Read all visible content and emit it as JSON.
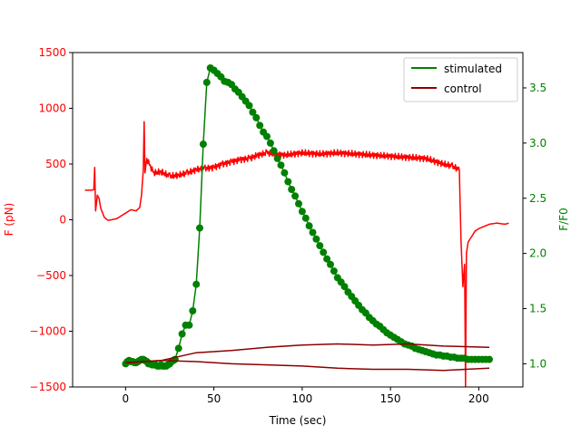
{
  "chart_data": {
    "type": "line",
    "xlabel": "Time (sec)",
    "ylabel_left": "F (pN)",
    "ylabel_right": "F/F0",
    "xlim": [
      -30,
      225
    ],
    "ylim_left": [
      -1500,
      1500
    ],
    "ylim_right": [
      0.79,
      3.82
    ],
    "xticks": [
      0,
      50,
      100,
      150,
      200
    ],
    "xtick_labels": [
      "0",
      "50",
      "100",
      "150",
      "200"
    ],
    "yticks_left": [
      -1500,
      -1000,
      -500,
      0,
      500,
      1000,
      1500
    ],
    "ytick_labels_left": [
      "−1500",
      "−1000",
      "−500",
      "0",
      "500",
      "1000",
      "1500"
    ],
    "yticks_right": [
      1.0,
      1.5,
      2.0,
      2.5,
      3.0,
      3.5
    ],
    "ytick_labels_right": [
      "1.0",
      "1.5",
      "2.0",
      "2.5",
      "3.0",
      "3.5"
    ],
    "legend": {
      "placement": "top-right",
      "entries": [
        {
          "label": "stimulated",
          "color": "#008000"
        },
        {
          "label": "control",
          "color": "#8b0000"
        }
      ]
    },
    "colors": {
      "force": "#ff0000",
      "stimulated": "#008000",
      "control": "#8b0000",
      "left_axis": "#ff0000",
      "right_axis": "#008000"
    },
    "series": [
      {
        "axis": "left",
        "color": "#ff0000",
        "noise": 30,
        "x": [
          -23,
          -19,
          -18,
          -17.5,
          -17,
          -16,
          -15,
          -14,
          -12,
          -10,
          -8,
          -5,
          0,
          3,
          6,
          8,
          9,
          10,
          10.5,
          11,
          12,
          14,
          16,
          20,
          25,
          30,
          35,
          40,
          45,
          50,
          55,
          60,
          65,
          70,
          75,
          80,
          90,
          100,
          110,
          120,
          130,
          140,
          150,
          160,
          170,
          180,
          185,
          189,
          190,
          191,
          192,
          192.5,
          193,
          194,
          196,
          198,
          200,
          203,
          206,
          210,
          215,
          217
        ],
        "y": [
          265,
          265,
          270,
          470,
          80,
          220,
          190,
          100,
          20,
          -5,
          0,
          10,
          60,
          90,
          80,
          110,
          220,
          440,
          880,
          420,
          550,
          480,
          420,
          430,
          390,
          400,
          420,
          450,
          460,
          470,
          500,
          520,
          540,
          550,
          580,
          600,
          580,
          600,
          590,
          600,
          590,
          580,
          570,
          560,
          550,
          500,
          480,
          450,
          -200,
          -600,
          -400,
          -1500,
          -300,
          -200,
          -150,
          -100,
          -80,
          -60,
          -40,
          -30,
          -40,
          -30
        ]
      },
      {
        "name": "stimulated",
        "axis": "right",
        "color": "#008000",
        "markers": true,
        "x": [
          0,
          1,
          2,
          3,
          4,
          5,
          6,
          7,
          8,
          9,
          10,
          11,
          12,
          13,
          14,
          15,
          16,
          17,
          18,
          19,
          20,
          21,
          22,
          23,
          24,
          25,
          26,
          27,
          28,
          30,
          32,
          34,
          36,
          38,
          40,
          42,
          44,
          46,
          48,
          50,
          52,
          54,
          56,
          58,
          60,
          62,
          64,
          66,
          68,
          70,
          72,
          74,
          76,
          78,
          80,
          82,
          84,
          86,
          88,
          90,
          92,
          94,
          96,
          98,
          100,
          102,
          104,
          106,
          108,
          110,
          112,
          114,
          116,
          118,
          120,
          122,
          124,
          126,
          128,
          130,
          132,
          134,
          136,
          138,
          140,
          142,
          144,
          146,
          148,
          150,
          152,
          154,
          156,
          158,
          160,
          162,
          164,
          166,
          168,
          170,
          172,
          174,
          176,
          178,
          180,
          182,
          184,
          186,
          188,
          190,
          192,
          194,
          196,
          198,
          200,
          202,
          204,
          206
        ],
        "y": [
          1.0,
          1.02,
          1.03,
          1.02,
          1.02,
          1.01,
          1.01,
          1.02,
          1.03,
          1.04,
          1.04,
          1.03,
          1.02,
          1.0,
          1.0,
          0.99,
          0.99,
          0.99,
          0.98,
          0.98,
          0.99,
          0.98,
          0.98,
          0.98,
          0.99,
          1.0,
          1.02,
          1.03,
          1.04,
          1.14,
          1.27,
          1.35,
          1.35,
          1.48,
          1.72,
          2.23,
          2.99,
          3.55,
          3.68,
          3.66,
          3.63,
          3.6,
          3.56,
          3.55,
          3.53,
          3.49,
          3.46,
          3.42,
          3.38,
          3.34,
          3.28,
          3.23,
          3.16,
          3.1,
          3.06,
          3.0,
          2.93,
          2.86,
          2.8,
          2.73,
          2.65,
          2.58,
          2.52,
          2.45,
          2.38,
          2.32,
          2.25,
          2.19,
          2.13,
          2.07,
          2.01,
          1.95,
          1.9,
          1.84,
          1.78,
          1.74,
          1.7,
          1.65,
          1.61,
          1.57,
          1.53,
          1.49,
          1.46,
          1.42,
          1.39,
          1.36,
          1.34,
          1.31,
          1.28,
          1.26,
          1.24,
          1.22,
          1.2,
          1.18,
          1.17,
          1.16,
          1.14,
          1.13,
          1.12,
          1.11,
          1.1,
          1.09,
          1.08,
          1.08,
          1.07,
          1.07,
          1.06,
          1.06,
          1.05,
          1.05,
          1.05,
          1.04,
          1.04,
          1.04,
          1.04,
          1.04,
          1.04,
          1.04
        ]
      },
      {
        "name": "control",
        "axis": "right",
        "color": "#8b0000",
        "x": [
          0,
          20,
          40,
          60,
          80,
          100,
          120,
          140,
          160,
          180,
          206
        ],
        "y": [
          1.01,
          1.03,
          1.1,
          1.12,
          1.15,
          1.17,
          1.18,
          1.17,
          1.18,
          1.16,
          1.15
        ]
      },
      {
        "axis": "right",
        "color": "#8b0000",
        "x": [
          0,
          20,
          40,
          60,
          80,
          100,
          120,
          140,
          160,
          180,
          206
        ],
        "y": [
          1.01,
          1.03,
          1.02,
          1.0,
          0.99,
          0.98,
          0.96,
          0.95,
          0.95,
          0.94,
          0.96
        ]
      }
    ]
  }
}
